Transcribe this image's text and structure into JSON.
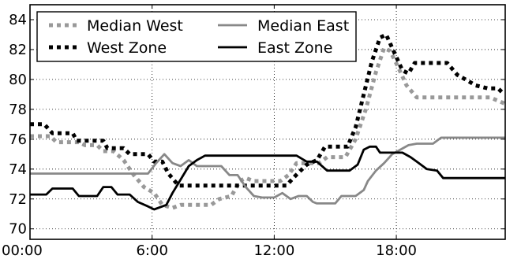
{
  "chart_data": {
    "type": "line",
    "title": "",
    "xlabel": "",
    "ylabel": "",
    "xlim": [
      0,
      23.35
    ],
    "ylim": [
      69.3,
      85.0
    ],
    "x_ticks": [
      {
        "value": 0,
        "label": "00:00"
      },
      {
        "value": 6,
        "label": "6:00"
      },
      {
        "value": 12,
        "label": "12:00"
      },
      {
        "value": 18,
        "label": "18:00"
      }
    ],
    "y_ticks": [
      {
        "value": 70,
        "label": "70"
      },
      {
        "value": 72,
        "label": "72"
      },
      {
        "value": 74,
        "label": "74"
      },
      {
        "value": 76,
        "label": "76"
      },
      {
        "value": 78,
        "label": "78"
      },
      {
        "value": 80,
        "label": "80"
      },
      {
        "value": 82,
        "label": "82"
      },
      {
        "value": 84,
        "label": "84"
      }
    ],
    "grid": true,
    "legend_position": "top-left",
    "legend_columns": 2,
    "series": [
      {
        "name": "Median West",
        "color": "#999999",
        "style": "dotted",
        "points": [
          [
            0.0,
            76.2
          ],
          [
            1.0,
            76.2
          ],
          [
            1.3,
            75.8
          ],
          [
            2.4,
            75.8
          ],
          [
            2.7,
            75.6
          ],
          [
            3.3,
            75.6
          ],
          [
            3.6,
            75.2
          ],
          [
            4.1,
            75.2
          ],
          [
            4.6,
            74.6
          ],
          [
            5.1,
            73.6
          ],
          [
            5.6,
            72.8
          ],
          [
            6.1,
            72.4
          ],
          [
            6.5,
            71.6
          ],
          [
            7.0,
            71.4
          ],
          [
            7.4,
            71.6
          ],
          [
            8.9,
            71.6
          ],
          [
            9.3,
            72.0
          ],
          [
            9.9,
            72.2
          ],
          [
            10.3,
            73.2
          ],
          [
            10.6,
            73.4
          ],
          [
            11.0,
            73.2
          ],
          [
            12.3,
            73.2
          ],
          [
            12.7,
            73.6
          ],
          [
            13.1,
            74.4
          ],
          [
            14.2,
            74.4
          ],
          [
            14.6,
            74.8
          ],
          [
            15.5,
            74.8
          ],
          [
            16.0,
            76.0
          ],
          [
            16.5,
            78.0
          ],
          [
            17.0,
            80.5
          ],
          [
            17.4,
            82.1
          ],
          [
            17.7,
            81.9
          ],
          [
            18.1,
            80.8
          ],
          [
            18.5,
            79.6
          ],
          [
            19.0,
            78.8
          ],
          [
            20.4,
            78.8
          ],
          [
            21.0,
            78.8
          ],
          [
            22.6,
            78.8
          ],
          [
            23.3,
            78.4
          ]
        ]
      },
      {
        "name": "West Zone",
        "color": "#000000",
        "style": "dotted",
        "points": [
          [
            0.0,
            77.0
          ],
          [
            0.7,
            77.0
          ],
          [
            1.1,
            76.4
          ],
          [
            2.1,
            76.4
          ],
          [
            2.3,
            75.9
          ],
          [
            3.6,
            75.9
          ],
          [
            3.8,
            75.4
          ],
          [
            4.6,
            75.4
          ],
          [
            4.9,
            75.0
          ],
          [
            5.8,
            75.0
          ],
          [
            6.1,
            74.5
          ],
          [
            6.5,
            74.5
          ],
          [
            6.8,
            73.7
          ],
          [
            7.3,
            72.9
          ],
          [
            12.6,
            72.9
          ],
          [
            13.0,
            73.5
          ],
          [
            13.6,
            74.3
          ],
          [
            14.1,
            74.6
          ],
          [
            14.5,
            75.5
          ],
          [
            15.6,
            75.5
          ],
          [
            16.0,
            76.8
          ],
          [
            16.4,
            79.0
          ],
          [
            16.8,
            81.2
          ],
          [
            17.2,
            82.8
          ],
          [
            17.5,
            83.0
          ],
          [
            17.9,
            81.8
          ],
          [
            18.3,
            80.6
          ],
          [
            18.6,
            80.4
          ],
          [
            18.9,
            81.1
          ],
          [
            20.5,
            81.1
          ],
          [
            21.0,
            80.3
          ],
          [
            21.4,
            80.0
          ],
          [
            21.9,
            79.6
          ],
          [
            22.5,
            79.4
          ],
          [
            23.0,
            79.4
          ],
          [
            23.3,
            79.0
          ]
        ]
      },
      {
        "name": "Median East",
        "color": "#888888",
        "style": "solid",
        "points": [
          [
            0.0,
            73.7
          ],
          [
            5.8,
            73.7
          ],
          [
            6.2,
            74.4
          ],
          [
            6.6,
            75.0
          ],
          [
            7.0,
            74.4
          ],
          [
            7.4,
            74.2
          ],
          [
            7.8,
            74.6
          ],
          [
            8.2,
            74.2
          ],
          [
            9.4,
            74.2
          ],
          [
            9.8,
            73.6
          ],
          [
            10.2,
            73.6
          ],
          [
            10.6,
            72.8
          ],
          [
            11.0,
            72.2
          ],
          [
            11.4,
            72.1
          ],
          [
            12.0,
            72.1
          ],
          [
            12.4,
            72.4
          ],
          [
            12.8,
            72.0
          ],
          [
            13.2,
            72.2
          ],
          [
            13.6,
            72.2
          ],
          [
            13.9,
            71.8
          ],
          [
            14.1,
            71.7
          ],
          [
            15.0,
            71.7
          ],
          [
            15.3,
            72.2
          ],
          [
            16.0,
            72.2
          ],
          [
            16.4,
            72.6
          ],
          [
            16.6,
            73.2
          ],
          [
            17.0,
            73.9
          ],
          [
            17.4,
            74.4
          ],
          [
            17.8,
            75.0
          ],
          [
            18.2,
            75.3
          ],
          [
            18.6,
            75.6
          ],
          [
            19.0,
            75.7
          ],
          [
            19.8,
            75.7
          ],
          [
            20.2,
            76.1
          ],
          [
            23.35,
            76.1
          ]
        ]
      },
      {
        "name": "East Zone",
        "color": "#000000",
        "style": "solid",
        "points": [
          [
            0.0,
            72.3
          ],
          [
            0.8,
            72.3
          ],
          [
            1.1,
            72.7
          ],
          [
            2.1,
            72.7
          ],
          [
            2.4,
            72.2
          ],
          [
            3.3,
            72.2
          ],
          [
            3.6,
            72.8
          ],
          [
            4.0,
            72.8
          ],
          [
            4.3,
            72.3
          ],
          [
            4.9,
            72.3
          ],
          [
            5.3,
            71.8
          ],
          [
            5.8,
            71.5
          ],
          [
            6.1,
            71.3
          ],
          [
            6.7,
            71.6
          ],
          [
            7.0,
            72.4
          ],
          [
            7.4,
            73.3
          ],
          [
            7.8,
            74.2
          ],
          [
            8.2,
            74.6
          ],
          [
            8.6,
            74.9
          ],
          [
            13.1,
            74.9
          ],
          [
            13.6,
            74.5
          ],
          [
            14.1,
            74.5
          ],
          [
            14.6,
            73.9
          ],
          [
            15.7,
            73.9
          ],
          [
            16.1,
            74.3
          ],
          [
            16.4,
            75.3
          ],
          [
            16.7,
            75.5
          ],
          [
            17.0,
            75.5
          ],
          [
            17.2,
            75.1
          ],
          [
            18.3,
            75.1
          ],
          [
            18.7,
            74.8
          ],
          [
            19.0,
            74.5
          ],
          [
            19.5,
            74.0
          ],
          [
            20.0,
            73.9
          ],
          [
            20.3,
            73.4
          ],
          [
            23.35,
            73.4
          ]
        ]
      }
    ]
  }
}
